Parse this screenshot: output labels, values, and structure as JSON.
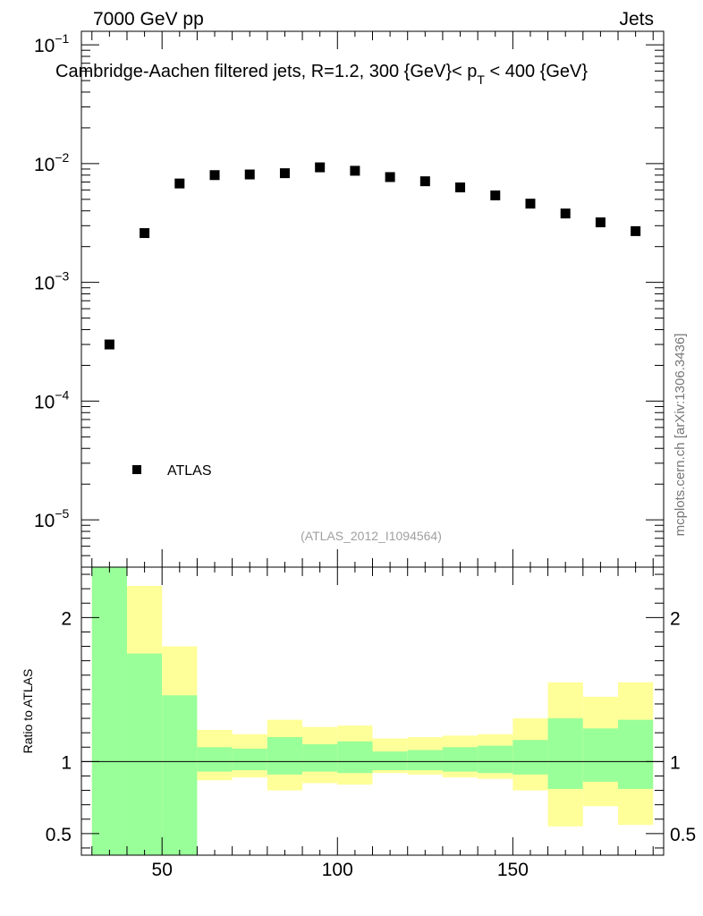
{
  "header": {
    "left": "7000 GeV pp",
    "right": "Jets",
    "title": "Cambridge-Aachen filtered jets, R=1.2, 300 {GeV}< p",
    "title_sub": "T",
    "title_end": " < 400 {GeV}",
    "watermark": "(ATLAS_2012_I1094564)",
    "side_label": "mcplots.cern.ch [arXiv:1306.3436]"
  },
  "colors": {
    "band_inner": "#99ff99",
    "band_outer": "#ffff99",
    "marker": "#000000"
  },
  "chart_data": [
    {
      "type": "scatter",
      "panel": "main",
      "yscale": "log",
      "xlim": [
        27,
        193
      ],
      "ylim": [
        4e-06,
        0.13
      ],
      "y_ticks": [
        {
          "base": "10",
          "exp": "−5",
          "value": 1e-05
        },
        {
          "base": "10",
          "exp": "−4",
          "value": 0.0001
        },
        {
          "base": "10",
          "exp": "−3",
          "value": 0.001
        },
        {
          "base": "10",
          "exp": "−2",
          "value": 0.01
        },
        {
          "base": "10",
          "exp": "−1",
          "value": 0.1
        }
      ],
      "legend": {
        "position": "bottom-left",
        "entries": [
          "ATLAS"
        ]
      },
      "series": [
        {
          "name": "ATLAS",
          "x": [
            35,
            45,
            55,
            65,
            75,
            85,
            95,
            105,
            115,
            125,
            135,
            145,
            155,
            165,
            175,
            185
          ],
          "y": [
            0.0003,
            0.0026,
            0.0068,
            0.008,
            0.0081,
            0.0083,
            0.0093,
            0.0087,
            0.0077,
            0.0071,
            0.0063,
            0.0054,
            0.0046,
            0.0038,
            0.0032,
            0.0027
          ]
        }
      ]
    },
    {
      "type": "area",
      "panel": "ratio",
      "ylabel": "Ratio to ATLAS",
      "xlim": [
        27,
        193
      ],
      "ylim": [
        0.35,
        2.35
      ],
      "x_ticks": [
        50,
        100,
        150
      ],
      "y_ticks": [
        0.5,
        1,
        2
      ],
      "reference_line": 1,
      "bins": [
        {
          "lo": 30,
          "hi": 40,
          "inner": [
            0.35,
            2.35
          ],
          "outer": [
            0.35,
            2.35
          ]
        },
        {
          "lo": 40,
          "hi": 50,
          "inner": [
            0.35,
            1.75
          ],
          "outer": [
            0.35,
            2.22
          ]
        },
        {
          "lo": 50,
          "hi": 60,
          "inner": [
            0.35,
            1.46
          ],
          "outer": [
            0.66,
            1.8
          ]
        },
        {
          "lo": 60,
          "hi": 70,
          "inner": [
            0.93,
            1.1
          ],
          "outer": [
            0.87,
            1.22
          ]
        },
        {
          "lo": 70,
          "hi": 80,
          "inner": [
            0.94,
            1.09
          ],
          "outer": [
            0.89,
            1.19
          ]
        },
        {
          "lo": 80,
          "hi": 90,
          "inner": [
            0.91,
            1.17
          ],
          "outer": [
            0.8,
            1.29
          ]
        },
        {
          "lo": 90,
          "hi": 100,
          "inner": [
            0.93,
            1.12
          ],
          "outer": [
            0.85,
            1.24
          ]
        },
        {
          "lo": 100,
          "hi": 110,
          "inner": [
            0.92,
            1.14
          ],
          "outer": [
            0.84,
            1.25
          ]
        },
        {
          "lo": 110,
          "hi": 120,
          "inner": [
            0.94,
            1.07
          ],
          "outer": [
            0.92,
            1.16
          ]
        },
        {
          "lo": 120,
          "hi": 130,
          "inner": [
            0.94,
            1.08
          ],
          "outer": [
            0.91,
            1.17
          ]
        },
        {
          "lo": 130,
          "hi": 140,
          "inner": [
            0.93,
            1.1
          ],
          "outer": [
            0.89,
            1.18
          ]
        },
        {
          "lo": 140,
          "hi": 150,
          "inner": [
            0.92,
            1.11
          ],
          "outer": [
            0.88,
            1.19
          ]
        },
        {
          "lo": 150,
          "hi": 160,
          "inner": [
            0.91,
            1.15
          ],
          "outer": [
            0.8,
            1.3
          ]
        },
        {
          "lo": 160,
          "hi": 170,
          "inner": [
            0.81,
            1.3
          ],
          "outer": [
            0.55,
            1.55
          ]
        },
        {
          "lo": 170,
          "hi": 180,
          "inner": [
            0.86,
            1.23
          ],
          "outer": [
            0.69,
            1.45
          ]
        },
        {
          "lo": 180,
          "hi": 190,
          "inner": [
            0.81,
            1.29
          ],
          "outer": [
            0.56,
            1.55
          ]
        }
      ]
    }
  ]
}
